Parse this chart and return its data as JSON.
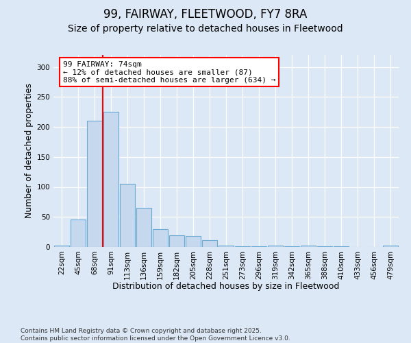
{
  "title_line1": "99, FAIRWAY, FLEETWOOD, FY7 8RA",
  "title_line2": "Size of property relative to detached houses in Fleetwood",
  "xlabel": "Distribution of detached houses by size in Fleetwood",
  "ylabel": "Number of detached properties",
  "categories": [
    "22sqm",
    "45sqm",
    "68sqm",
    "91sqm",
    "113sqm",
    "136sqm",
    "159sqm",
    "182sqm",
    "205sqm",
    "228sqm",
    "251sqm",
    "273sqm",
    "296sqm",
    "319sqm",
    "342sqm",
    "365sqm",
    "388sqm",
    "410sqm",
    "433sqm",
    "456sqm",
    "479sqm"
  ],
  "values": [
    2,
    46,
    210,
    225,
    105,
    65,
    30,
    20,
    18,
    12,
    2,
    1,
    1,
    2,
    1,
    2,
    1,
    1,
    0,
    0,
    2
  ],
  "bar_color": "#c5d8ee",
  "bar_edge_color": "#6aaad4",
  "background_color": "#dce8f5",
  "vline_x": 2.48,
  "annotation_text": "99 FAIRWAY: 74sqm\n← 12% of detached houses are smaller (87)\n88% of semi-detached houses are larger (634) →",
  "annotation_box_color": "white",
  "annotation_box_edge": "red",
  "vline_color": "red",
  "ylim": [
    0,
    320
  ],
  "yticks": [
    0,
    50,
    100,
    150,
    200,
    250,
    300
  ],
  "footer_line1": "Contains HM Land Registry data © Crown copyright and database right 2025.",
  "footer_line2": "Contains public sector information licensed under the Open Government Licence v3.0.",
  "title_fontsize": 12,
  "subtitle_fontsize": 10,
  "axis_label_fontsize": 9,
  "tick_fontsize": 7.5,
  "annotation_fontsize": 8,
  "footer_fontsize": 6.5
}
